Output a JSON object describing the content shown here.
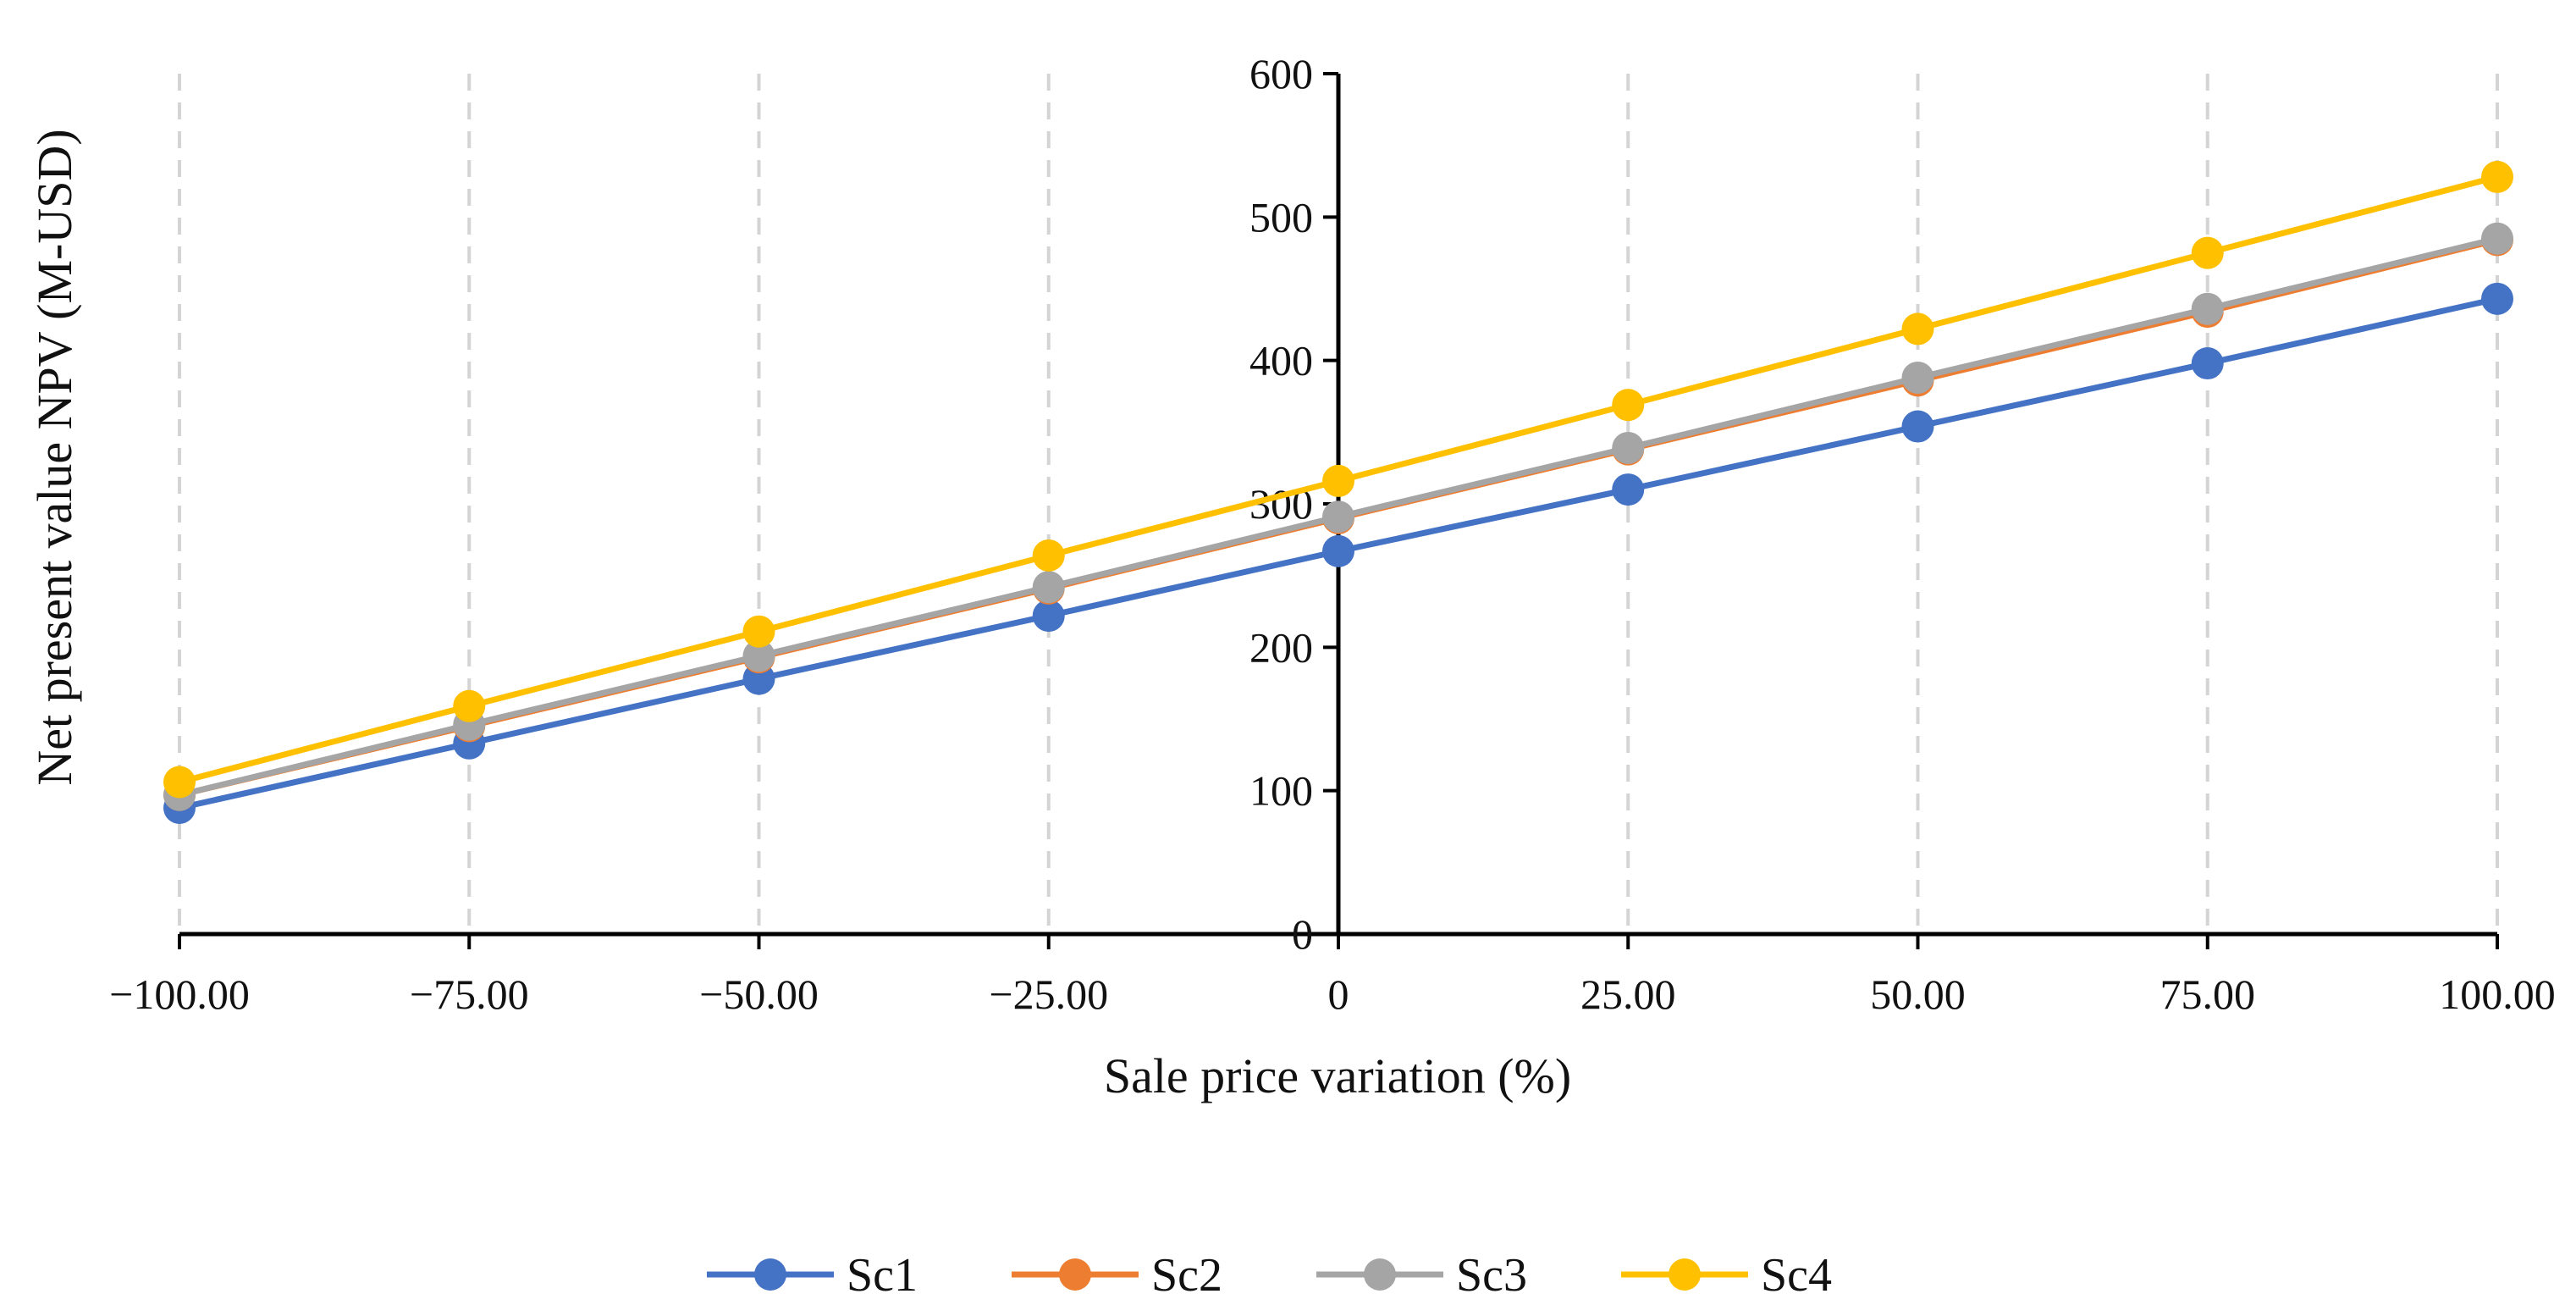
{
  "chart_data": {
    "type": "line",
    "title": "",
    "xlabel": "Sale price variation (%)",
    "ylabel": "Net present value  NPV (M-USD)",
    "x": [
      -100,
      -75,
      -50,
      -25,
      0,
      25,
      50,
      75,
      100
    ],
    "x_tick_labels": [
      "−100.00",
      "−75.00",
      "−50.00",
      "−25.00",
      "0",
      "25.00",
      "50.00",
      "75.00",
      "100.00"
    ],
    "xlim": [
      -100,
      100
    ],
    "ylim": [
      0,
      600
    ],
    "y_ticks": [
      0,
      100,
      200,
      300,
      400,
      500,
      600
    ],
    "y_tick_labels": [
      "0",
      "100",
      "200",
      "300",
      "400",
      "500",
      "600"
    ],
    "grid": "vertical dashed",
    "legend_position": "bottom",
    "series": [
      {
        "name": "Sc1",
        "color": "#4472C4",
        "values": [
          88,
          133,
          178,
          222,
          267,
          310,
          354,
          398,
          443
        ]
      },
      {
        "name": "Sc2",
        "color": "#ED7D31",
        "values": [
          97,
          145,
          193,
          241,
          290,
          338,
          386,
          434,
          484
        ]
      },
      {
        "name": "Sc3",
        "color": "#A5A5A5",
        "values": [
          97,
          146,
          194,
          242,
          291,
          339,
          388,
          436,
          485
        ]
      },
      {
        "name": "Sc4",
        "color": "#FFC000",
        "values": [
          106,
          159,
          211,
          264,
          316,
          369,
          422,
          475,
          528
        ]
      }
    ]
  }
}
